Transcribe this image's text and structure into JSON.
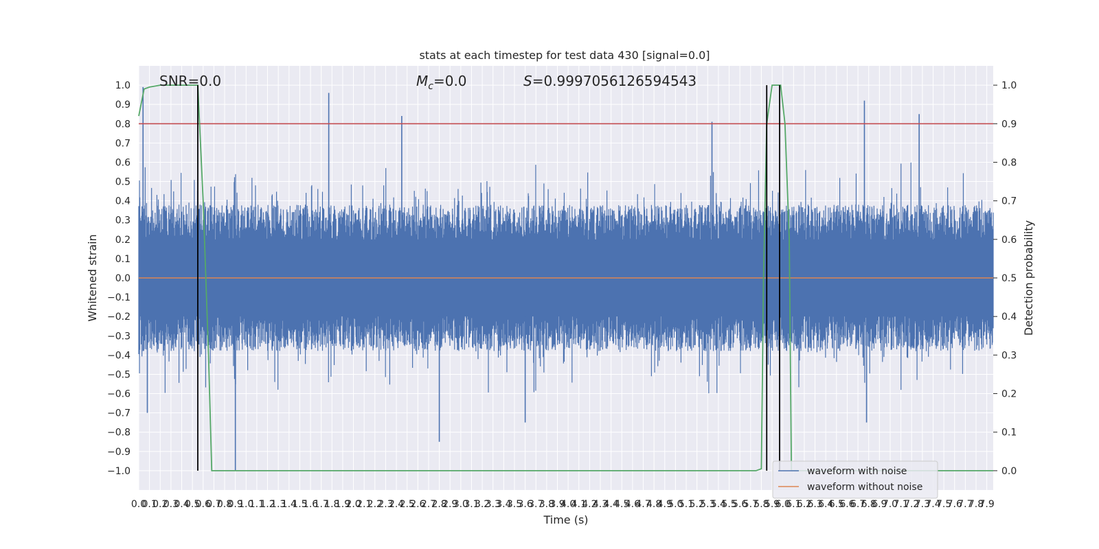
{
  "chart_data": {
    "type": "line",
    "title": "stats at each timestep for test data 430 [signal=0.0]",
    "xlabel": "Time (s)",
    "ylabel": "Whitened strain",
    "y2label": "Detection probability",
    "xlim": [
      0.0,
      7.96
    ],
    "ylim": [
      -1.1,
      1.1
    ],
    "y2lim": [
      -0.05,
      1.05
    ],
    "x_tick_step": 0.1,
    "y_ticks": [
      "1.0",
      "0.9",
      "0.8",
      "0.7",
      "0.6",
      "0.5",
      "0.4",
      "0.3",
      "0.2",
      "0.1",
      "0.0",
      "-0.1",
      "-0.2",
      "-0.3",
      "-0.4",
      "-0.5",
      "-0.6",
      "-0.7",
      "-0.8",
      "-0.9",
      "-1.0"
    ],
    "y2_ticks": [
      "1.0",
      "0.9",
      "0.8",
      "0.7",
      "0.6",
      "0.5",
      "0.4",
      "0.3",
      "0.2",
      "0.1",
      "0.0"
    ],
    "grid": true,
    "legend_position": "lower-right",
    "annotations": {
      "snr": "SNR=0.0",
      "mc_symbol": "M",
      "mc_sub": "c",
      "mc_value": "=0.0",
      "s_symbol": "S",
      "s_value": "=0.9997056126594543"
    },
    "threshold": {
      "y2": 0.9,
      "color": "#c44e52"
    },
    "vertical_markers_x": [
      0.55,
      5.85,
      5.97
    ],
    "series": [
      {
        "name": "waveform with noise",
        "color": "#4c72b0",
        "description": "dense noise around 0",
        "highlights": [
          {
            "x": 0.04,
            "y": 0.99
          },
          {
            "x": 0.08,
            "y": -0.7
          },
          {
            "x": 0.9,
            "y": -1.0
          },
          {
            "x": 1.77,
            "y": 0.96
          },
          {
            "x": 2.45,
            "y": 0.84
          },
          {
            "x": 2.8,
            "y": -0.85
          },
          {
            "x": 3.6,
            "y": -0.75
          },
          {
            "x": 5.34,
            "y": 0.81
          },
          {
            "x": 6.76,
            "y": 0.92
          },
          {
            "x": 7.27,
            "y": 0.85
          },
          {
            "x": 6.78,
            "y": -0.75
          }
        ]
      },
      {
        "name": "waveform without noise",
        "color": "#dd8452",
        "constant_y": 0.0
      },
      {
        "name": "detection probability",
        "color": "#55a868",
        "axis": "right",
        "x": [
          0.0,
          0.05,
          0.1,
          0.2,
          0.3,
          0.4,
          0.55,
          0.6,
          0.65,
          0.68,
          5.75,
          5.8,
          5.82,
          5.85,
          5.9,
          5.96,
          5.98,
          6.02,
          6.06,
          6.08,
          7.96
        ],
        "y": [
          0.92,
          0.99,
          0.995,
          1.0,
          1.0,
          1.0,
          1.0,
          0.7,
          0.3,
          0.0,
          0.0,
          0.005,
          0.5,
          0.9,
          1.0,
          1.0,
          1.0,
          0.9,
          0.6,
          0.0,
          0.0
        ]
      }
    ]
  }
}
